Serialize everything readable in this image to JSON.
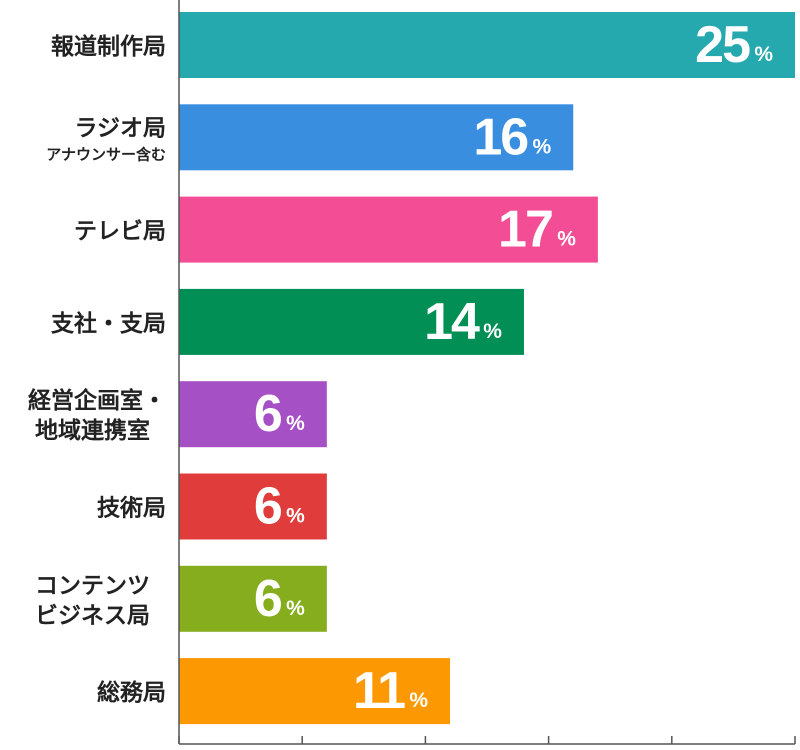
{
  "chart_data": {
    "type": "bar",
    "orientation": "horizontal",
    "categories": [
      {
        "lines": [
          "報道制作局"
        ]
      },
      {
        "lines": [
          "ラジオ局"
        ],
        "sub": "アナウンサー含む"
      },
      {
        "lines": [
          "テレビ局"
        ]
      },
      {
        "lines": [
          "支社・支局"
        ]
      },
      {
        "lines": [
          "経営企画室・",
          "地域連携室"
        ]
      },
      {
        "lines": [
          "技術局"
        ]
      },
      {
        "lines": [
          "コンテンツ",
          "ビジネス局"
        ]
      },
      {
        "lines": [
          "総務局"
        ]
      }
    ],
    "values": [
      25,
      16,
      17,
      14,
      6,
      6,
      6,
      11
    ],
    "unit": "%",
    "colors": [
      "#25a9ae",
      "#3a8ee0",
      "#f34e95",
      "#018f55",
      "#a650c5",
      "#e13c3c",
      "#86ad1d",
      "#fc9801"
    ],
    "xlim": [
      0,
      25
    ],
    "x_ticks": [
      0,
      5,
      10,
      15,
      20,
      25
    ],
    "tick_labels_shown": false,
    "grid": false,
    "legend": "none",
    "axis_color": "#555555"
  }
}
